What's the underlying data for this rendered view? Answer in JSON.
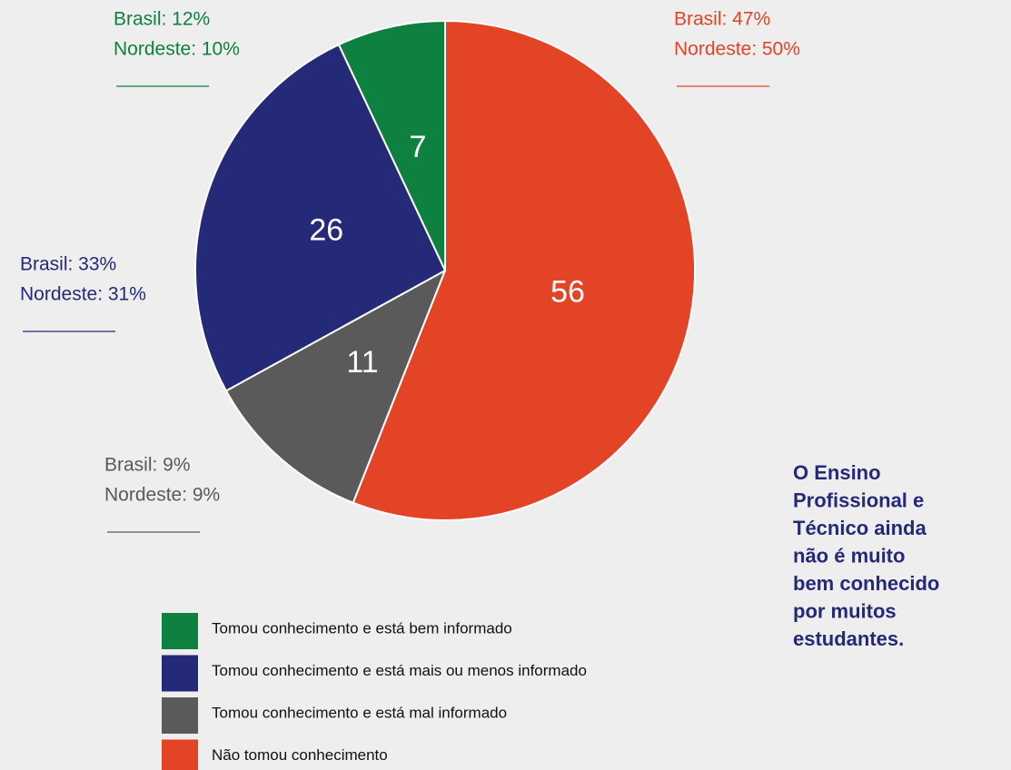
{
  "chart_data": {
    "type": "pie",
    "categories": [
      "Tomou conhecimento e está bem informado",
      "Tomou conhecimento e está mais ou menos informado",
      "Tomou conhecimento e está mal informado",
      "Não tomou conhecimento"
    ],
    "values": [
      7,
      26,
      11,
      56
    ],
    "colors": [
      "#0e8040",
      "#252a78",
      "#5a5a5a",
      "#e44426"
    ],
    "annotations": [
      [
        "Brasil: 12%",
        "Nordeste: 10%"
      ],
      [
        "Brasil: 33%",
        "Nordeste: 31%"
      ],
      [
        "Brasil: 9%",
        "Nordeste: 9%"
      ],
      [
        "Brasil: 47%",
        "Nordeste: 50%"
      ]
    ],
    "side_note": [
      "O Ensino",
      "Profissional e",
      "Técnico ainda",
      "não é muito",
      "bem conhecido",
      "por muitos",
      "estudantes."
    ]
  }
}
